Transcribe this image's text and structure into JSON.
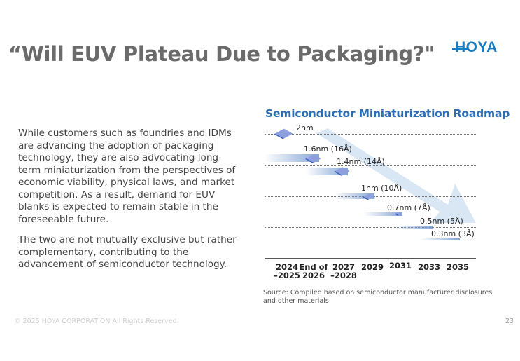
{
  "title": "“Will EUV Plateau Due to Packaging?\"",
  "logo": "HOYA",
  "body": {
    "paragraph1": "While customers such as foundries and IDMs are advancing the adoption of packaging technology, they are also advocating long-term miniaturization from the perspectives of economic viability, physical laws, and market competition. As a result, demand for EUV blanks is expected to remain stable in the foreseeable future.",
    "paragraph2": "The two are not mutually exclusive but rather complementary, contributing to the advancement of semiconductor technology."
  },
  "roadmap": {
    "title": "Semiconductor Miniaturization Roadmap",
    "nodes": [
      "2nm",
      "1.6nm (16Å)",
      "1.4nm (14Å)",
      "1nm (10Å)",
      "0.7nm (7Å)",
      "0.5nm  (5Å)",
      "0.3nm (3Å)"
    ],
    "years": [
      {
        "l1": "2024",
        "l2": "–2025"
      },
      {
        "l1": "End of",
        "l2": "2026"
      },
      {
        "l1": "2027",
        "l2": "–2028"
      },
      {
        "l1": "2029",
        "l2": ""
      },
      {
        "l1": "2031",
        "l2": ""
      },
      {
        "l1": "2033",
        "l2": ""
      },
      {
        "l1": "2035",
        "l2": ""
      }
    ],
    "colors": {
      "title": "#2a6db5",
      "diamond": "#8d9fdd",
      "arrow": "#c9dcf0"
    }
  },
  "source": "Source: Compiled based on semiconductor manufacturer disclosures and other materials",
  "footer": {
    "copyright": "© 2025 HOYA CORPORATION All Rights Reserved",
    "page": "23"
  }
}
